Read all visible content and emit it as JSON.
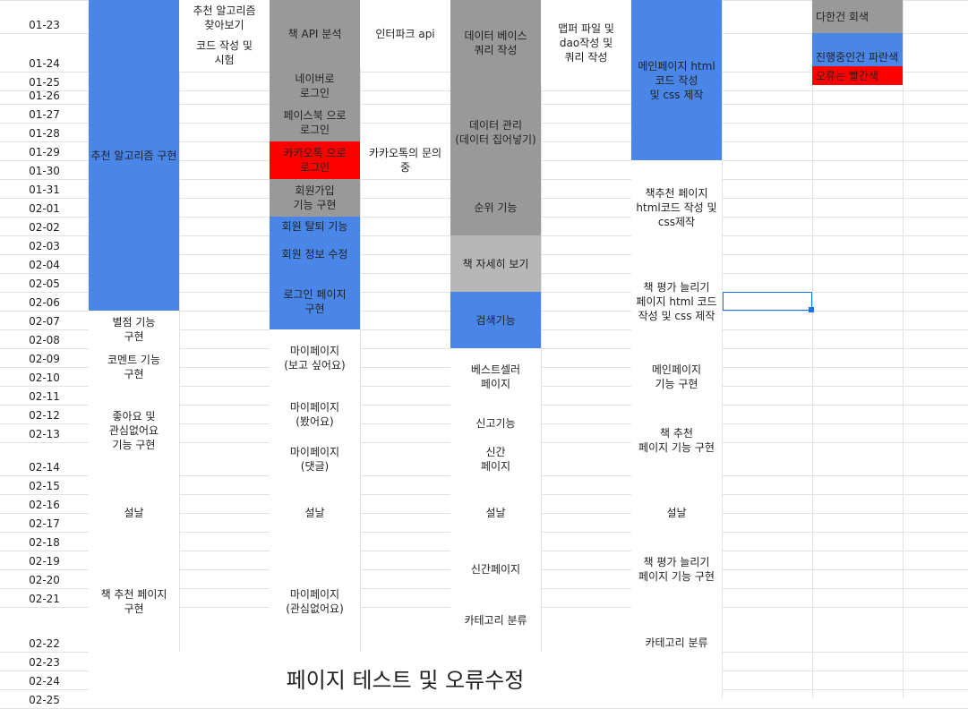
{
  "colors": {
    "blue": "#4a86e8",
    "gray": "#999999",
    "light_gray": "#b7b7b7",
    "red": "#ff0000",
    "selection": "#1a73e8"
  },
  "dates": [
    "01-23",
    "01-24",
    "01-25",
    "01-26",
    "01-27",
    "01-28",
    "01-29",
    "01-30",
    "01-31",
    "02-01",
    "02-02",
    "02-03",
    "02-04",
    "02-05",
    "02-06",
    "02-07",
    "02-08",
    "02-09",
    "02-10",
    "02-11",
    "02-12",
    "02-13",
    "02-14",
    "02-15",
    "02-16",
    "02-17",
    "02-18",
    "02-19",
    "02-20",
    "02-21",
    "02-22",
    "02-23",
    "02-24",
    "02-25"
  ],
  "blocks": [
    {
      "id": "b1",
      "text": "추천 알고리즘 구현",
      "color": "blue"
    },
    {
      "id": "b2",
      "text": "별점 기능\n구현",
      "color": null
    },
    {
      "id": "b3",
      "text": "코멘트 기능\n구현",
      "color": null
    },
    {
      "id": "b4",
      "text": "좋아요 및\n관심없어요\n기능 구현",
      "color": null
    },
    {
      "id": "b5",
      "text": "설날",
      "color": null
    },
    {
      "id": "b6",
      "text": "책 추천 페이지\n구현",
      "color": null
    },
    {
      "id": "b7",
      "text": "페이지 테스트 및 오류수정",
      "color": null
    },
    {
      "id": "b8",
      "text": "추천 알고리즘\n찾아보기",
      "color": null
    },
    {
      "id": "b9",
      "text": "코드 작성 및\n시험",
      "color": null
    },
    {
      "id": "b10",
      "text": "책 API 분석",
      "color": "gray"
    },
    {
      "id": "b11",
      "text": "네이버로\n로그인",
      "color": "gray"
    },
    {
      "id": "b12",
      "text": "페이스북 으로\n로그인",
      "color": "gray"
    },
    {
      "id": "b13",
      "text": "카카오톡 으로\n로그인",
      "color": "red"
    },
    {
      "id": "b14",
      "text": "회원가입\n기능 구현",
      "color": "gray"
    },
    {
      "id": "b15",
      "text": "회원 탈퇴 기능",
      "color": "blue"
    },
    {
      "id": "b16",
      "text": "회원 정보 수정",
      "color": "blue"
    },
    {
      "id": "b17",
      "text": "로그인 페이지\n구현",
      "color": "blue"
    },
    {
      "id": "b18",
      "text": "마이페이지\n(보고 싶어요)",
      "color": null
    },
    {
      "id": "b19",
      "text": "마이페이지\n(봤어요)",
      "color": null
    },
    {
      "id": "b20",
      "text": "마이페이지\n(댓글)",
      "color": null
    },
    {
      "id": "b21",
      "text": "설날",
      "color": null
    },
    {
      "id": "b22",
      "text": "마이페이지\n(관심없어요)",
      "color": null
    },
    {
      "id": "b23",
      "text": "인터파크 api",
      "color": null
    },
    {
      "id": "b24",
      "text": "카카오톡의 문의\n중",
      "color": null
    },
    {
      "id": "b25",
      "text": "데이터 베이스\n쿼리 작성",
      "color": "gray"
    },
    {
      "id": "b26",
      "text": "데이터 관리\n(데이터 집어넣기)",
      "color": "gray"
    },
    {
      "id": "b27",
      "text": "순위 기능",
      "color": "gray"
    },
    {
      "id": "b28",
      "text": "책 자세히 보기",
      "color": "light_gray"
    },
    {
      "id": "b29",
      "text": "검색기능",
      "color": "blue"
    },
    {
      "id": "b30",
      "text": "베스트셀러\n페이지",
      "color": null
    },
    {
      "id": "b31",
      "text": "신고기능",
      "color": null
    },
    {
      "id": "b32",
      "text": "신간\n페이지",
      "color": null
    },
    {
      "id": "b33",
      "text": "설날",
      "color": null
    },
    {
      "id": "b34",
      "text": "신간페이지",
      "color": null
    },
    {
      "id": "b35",
      "text": "카테고리 분류",
      "color": null
    },
    {
      "id": "b36",
      "text": "맵퍼 파일 및\ndao작성 및\n쿼리 작성",
      "color": null
    },
    {
      "id": "b37",
      "text": "메인페이지 html\n코드 작성\n및 css 제작",
      "color": "blue"
    },
    {
      "id": "b38",
      "text": "책추천 페이지\nhtml코드 작성 및\ncss제작",
      "color": null
    },
    {
      "id": "b39",
      "text": "책 평가 늘리기\n페이지 html 코드\n작성 및 css 제작",
      "color": null
    },
    {
      "id": "b40",
      "text": "메인페이지\n기능 구현",
      "color": null
    },
    {
      "id": "b41",
      "text": "책 추천\n페이지 기능 구현",
      "color": null
    },
    {
      "id": "b42",
      "text": "설날",
      "color": null
    },
    {
      "id": "b43",
      "text": "책 평가 늘리기\n페이지 기능 구현",
      "color": null
    },
    {
      "id": "b44",
      "text": "카테고리 분류",
      "color": null
    },
    {
      "id": "b45",
      "text": "다한건 회색",
      "color": "gray"
    },
    {
      "id": "b46",
      "text": "진행중인건 파란색",
      "color": "blue"
    },
    {
      "id": "b47",
      "text": "오류는 빨간색",
      "color": "red"
    }
  ]
}
